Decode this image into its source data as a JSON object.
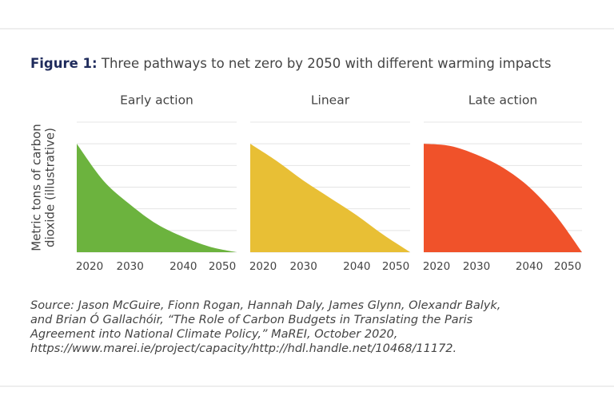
{
  "figure": {
    "label": "Figure 1:",
    "title": "Three pathways to net zero by 2050 with different warming impacts"
  },
  "y_axis_label": [
    "Metric tons of carbon",
    "dioxide (illustrative)"
  ],
  "chart_data": [
    {
      "type": "area",
      "title": "Early action",
      "color": "#6cb33e",
      "x": [
        2020,
        2025,
        2030,
        2035,
        2040,
        2045,
        2050
      ],
      "values": [
        5,
        3.3,
        2.2,
        1.3,
        0.7,
        0.25,
        0
      ],
      "xlim": [
        2020,
        2050
      ],
      "xticks": [
        2020,
        2030,
        2040,
        2050
      ],
      "ylim": [
        0,
        6
      ],
      "yticks": [
        0,
        1,
        2,
        3,
        4,
        5,
        6
      ],
      "grid": true
    },
    {
      "type": "area",
      "title": "Linear",
      "color": "#e8bf35",
      "x": [
        2020,
        2025,
        2030,
        2035,
        2040,
        2045,
        2050
      ],
      "values": [
        5,
        4.2,
        3.3,
        2.5,
        1.7,
        0.8,
        0
      ],
      "xlim": [
        2020,
        2050
      ],
      "xticks": [
        2020,
        2030,
        2040,
        2050
      ],
      "ylim": [
        0,
        6
      ],
      "yticks": [
        0,
        1,
        2,
        3,
        4,
        5,
        6
      ],
      "grid": true
    },
    {
      "type": "area",
      "title": "Late action",
      "color": "#f0522a",
      "x": [
        2020,
        2025,
        2030,
        2035,
        2040,
        2045,
        2050
      ],
      "values": [
        5,
        4.9,
        4.5,
        3.9,
        3,
        1.7,
        0
      ],
      "xlim": [
        2020,
        2050
      ],
      "xticks": [
        2020,
        2030,
        2040,
        2050
      ],
      "ylim": [
        0,
        6
      ],
      "yticks": [
        0,
        1,
        2,
        3,
        4,
        5,
        6
      ],
      "grid": true
    }
  ],
  "source": [
    "Source: Jason McGuire, Fionn Rogan, Hannah Daly, James Glynn, Olexandr Balyk,",
    "and Brian Ó Gallachóir, “The Role of Carbon Budgets in Translating the Paris",
    "Agreement into National Climate Policy,” MaREI, October 2020,",
    "https://www.marei.ie/project/capacity/http://hdl.handle.net/10468/11172."
  ]
}
